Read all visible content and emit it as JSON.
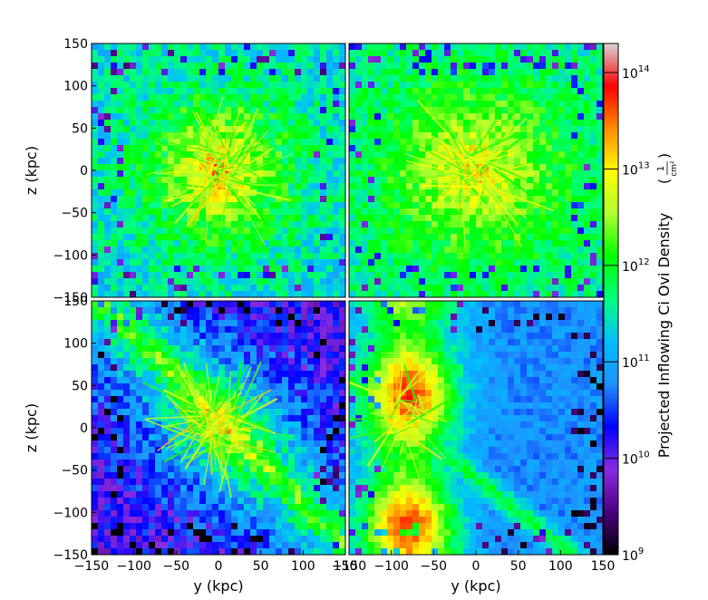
{
  "figure": {
    "colorbar_label_main": "Projected Inflowing Ci Ovi Density",
    "colorbar_unit": "(1/cm²)",
    "colorbar_unit_numerator": "1",
    "colorbar_unit_denominator": "cm²"
  },
  "chart_data": [
    {
      "type": "heatmap",
      "panel": "top-left",
      "xlabel": "",
      "ylabel": "z  (kpc)",
      "xlim": [
        -150,
        150
      ],
      "ylim": [
        -150,
        150
      ],
      "xticks": [],
      "yticks": [
        "−150",
        "−100",
        "−50",
        "0",
        "50",
        "100",
        "150"
      ],
      "description_values": {
        "peak_center": [
          0,
          0
        ],
        "peak_log10": 13.6
      }
    },
    {
      "type": "heatmap",
      "panel": "top-right",
      "xlabel": "",
      "ylabel": "",
      "xlim": [
        -150,
        150
      ],
      "ylim": [
        -150,
        150
      ],
      "xticks": [],
      "yticks": [],
      "description_values": {
        "peak_center": [
          0,
          0
        ],
        "peak_log10": 13.4
      }
    },
    {
      "type": "heatmap",
      "panel": "bottom-left",
      "xlabel": "y  (kpc)",
      "ylabel": "z  (kpc)",
      "xlim": [
        -150,
        150
      ],
      "ylim": [
        -150,
        150
      ],
      "xticks": [
        "−150",
        "−100",
        "−50",
        "0",
        "50",
        "100",
        "150"
      ],
      "yticks": [
        "−150",
        "−100",
        "−50",
        "0",
        "50",
        "100",
        "150"
      ],
      "description_values": {
        "peak_center": [
          0,
          0
        ],
        "peak_log10": 12.8
      }
    },
    {
      "type": "heatmap",
      "panel": "bottom-right",
      "xlabel": "y  (kpc)",
      "ylabel": "",
      "xlim": [
        -150,
        150
      ],
      "ylim": [
        -150,
        150
      ],
      "xticks": [
        "−150",
        "−100",
        "−50",
        "0",
        "50",
        "100",
        "150"
      ],
      "yticks": [],
      "description_values": {
        "peak_center": [
          -90,
          20
        ],
        "peak_log10": 13.3
      }
    },
    {
      "type": "colorbar",
      "scale": "log",
      "range": [
        1000000000.0,
        200000000000000.0
      ],
      "ticks": [
        {
          "base": "10",
          "exp": "9",
          "value": 1000000000.0
        },
        {
          "base": "10",
          "exp": "10",
          "value": 10000000000.0
        },
        {
          "base": "10",
          "exp": "11",
          "value": 100000000000.0
        },
        {
          "base": "10",
          "exp": "12",
          "value": 1000000000000.0
        },
        {
          "base": "10",
          "exp": "13",
          "value": 10000000000000.0
        },
        {
          "base": "10",
          "exp": "14",
          "value": 100000000000000.0
        }
      ],
      "colormap": [
        "#000000",
        "#4b0082",
        "#8a2be2",
        "#0000ff",
        "#1e90ff",
        "#00bfff",
        "#00ff7f",
        "#00ff00",
        "#adff2f",
        "#ffff00",
        "#ff8c00",
        "#ff0000",
        "#d7d7d7"
      ]
    }
  ]
}
